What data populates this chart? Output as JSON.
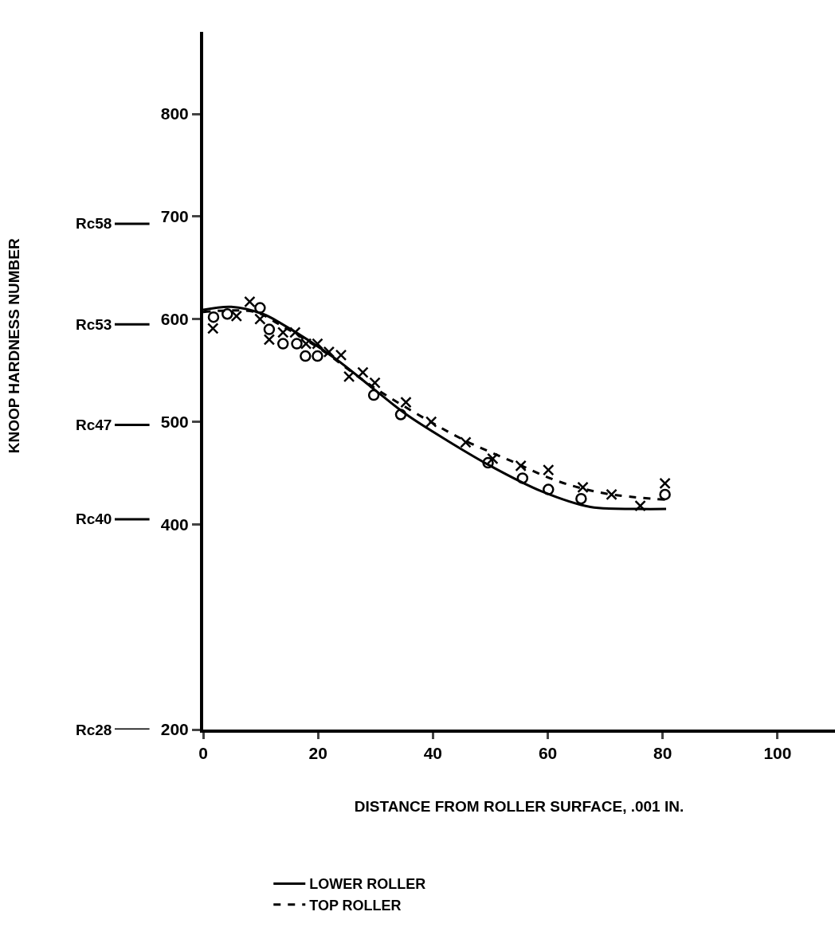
{
  "chart_data": {
    "type": "line",
    "xlabel": "DISTANCE FROM ROLLER SURFACE, .001 IN.",
    "annotations": [
      "KNOOP HARDNESS NUMBER"
    ],
    "xlim": [
      0,
      110
    ],
    "xticks": [
      0,
      20,
      40,
      60,
      80,
      100
    ],
    "ylim": [
      200,
      880
    ],
    "yticks": [
      200,
      400,
      500,
      600,
      700,
      800
    ],
    "ref_lines": [
      {
        "axis": "y",
        "value": 200,
        "label": "Rc28"
      },
      {
        "axis": "y",
        "value": 405,
        "label": "Rc40"
      },
      {
        "axis": "y",
        "value": 497,
        "label": "Rc47"
      },
      {
        "axis": "y",
        "value": 595,
        "label": "Rc53"
      },
      {
        "axis": "y",
        "value": 693,
        "label": "Rc58"
      }
    ],
    "grid": false,
    "legend": "bottom left",
    "series": [
      {
        "name": "LOWER ROLLER",
        "line_style": "solid",
        "marker": "none",
        "color": "#000000",
        "x": [
          0,
          4.9,
          10.4,
          13.5,
          22.9,
          29.9,
          35.4,
          42.4,
          50,
          59,
          67.4,
          75.7,
          80.6
        ],
        "values": [
          609,
          612,
          605,
          596,
          562,
          531,
          507,
          482,
          457,
          432,
          417,
          415,
          415
        ]
      },
      {
        "name": "TOP ROLLER",
        "line_style": "dashed",
        "marker": "none",
        "color": "#000000",
        "x": [
          0,
          9,
          13.2,
          20.1,
          28.5,
          36.8,
          45.1,
          53.5,
          61.8,
          70.1,
          80.6
        ],
        "values": [
          607,
          607,
          595,
          572,
          538,
          509,
          483,
          462,
          442,
          430,
          424
        ]
      },
      {
        "type": "scatter",
        "marker": "circle",
        "color": "#000000",
        "x": [
          1.8,
          4.2,
          9.9,
          11.5,
          13.9,
          16.3,
          17.8,
          19.9,
          29.7,
          34.4,
          49.6,
          55.6,
          60.1,
          65.8,
          80.4
        ],
        "values": [
          602,
          605,
          611,
          590,
          576,
          576,
          564,
          564,
          526,
          507,
          460,
          445,
          434,
          425,
          429
        ]
      },
      {
        "type": "scatter",
        "marker": "cross",
        "color": "#000000",
        "x": [
          1.7,
          5.8,
          8.1,
          9.9,
          11.5,
          13.9,
          16,
          17.9,
          19.9,
          21.9,
          24,
          25.4,
          27.8,
          29.9,
          35.3,
          39.7,
          45.7,
          50.4,
          55.3,
          60.1,
          66.1,
          71.1,
          76.1,
          80.4
        ],
        "values": [
          591,
          603,
          617,
          600,
          580,
          587,
          587,
          576,
          576,
          568,
          565,
          544,
          548,
          538,
          519,
          500,
          480,
          464,
          457,
          453,
          436,
          429,
          418,
          440
        ]
      }
    ]
  }
}
